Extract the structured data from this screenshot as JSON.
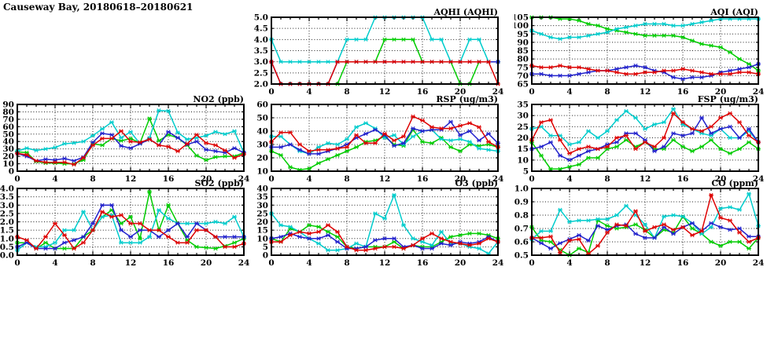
{
  "page_title": "Causeway Bay, 20180618–20180621",
  "colors": {
    "red": "#dd0000",
    "green": "#00cc00",
    "blue": "#2222cc",
    "cyan": "#00cccc"
  },
  "chart_data": [
    {
      "key": "aqhi",
      "type": "line",
      "title": "AQHI (AQHI)",
      "ylim": [
        2.0,
        5.0
      ],
      "ystep": 0.5,
      "ydecimals": 1,
      "xlim": [
        0,
        24
      ],
      "xticks": [
        0,
        4,
        8,
        12,
        16,
        20,
        24
      ],
      "grid": true,
      "legend": "none",
      "x_unit": "hour",
      "series": [
        {
          "name": "red",
          "values": [
            3,
            2,
            2,
            2,
            2,
            2,
            2,
            3,
            3,
            3,
            3,
            3,
            3,
            3,
            3,
            3,
            3,
            3,
            3,
            3,
            3,
            3,
            3,
            3,
            2
          ]
        },
        {
          "name": "green",
          "values": [
            null,
            null,
            null,
            null,
            null,
            null,
            null,
            2,
            3,
            3,
            3,
            3,
            4,
            4,
            4,
            4,
            3,
            3,
            3,
            3,
            2,
            2,
            3,
            3,
            3
          ]
        },
        {
          "name": "blue",
          "values": [
            3,
            2,
            2,
            2,
            2,
            2,
            2,
            3,
            3,
            3,
            3,
            3,
            3,
            3,
            3,
            3,
            3,
            3,
            3,
            3,
            3,
            3,
            3,
            3,
            3
          ]
        },
        {
          "name": "cyan",
          "values": [
            4,
            3,
            3,
            3,
            3,
            3,
            3,
            3,
            4,
            4,
            4,
            5,
            5,
            5,
            5,
            5,
            5,
            4,
            4,
            3,
            3,
            4,
            4,
            3,
            3
          ]
        }
      ]
    },
    {
      "key": "aqi",
      "type": "line",
      "title": "AQI (AQI)",
      "ylim": [
        65,
        105
      ],
      "ystep": 5,
      "ydecimals": 0,
      "xlim": [
        0,
        24
      ],
      "xticks": [
        0,
        4,
        8,
        12,
        16,
        20,
        24
      ],
      "grid": true,
      "legend": "none",
      "x_unit": "hour",
      "series": [
        {
          "name": "red",
          "values": [
            76,
            75,
            75,
            76,
            75,
            75,
            74,
            73,
            73,
            72,
            71,
            71,
            72,
            72,
            73,
            73,
            74,
            73,
            72,
            71,
            71,
            71,
            72,
            72,
            71
          ]
        },
        {
          "name": "green",
          "values": [
            105,
            105,
            105,
            104,
            104,
            103,
            101,
            100,
            98,
            97,
            96,
            95,
            94,
            94,
            94,
            94,
            93,
            91,
            89,
            88,
            87,
            84,
            80,
            77,
            73
          ]
        },
        {
          "name": "blue",
          "values": [
            71,
            71,
            70,
            70,
            70,
            71,
            72,
            73,
            73,
            74,
            75,
            76,
            75,
            73,
            72,
            69,
            68,
            69,
            69,
            70,
            72,
            73,
            74,
            75,
            77
          ]
        },
        {
          "name": "cyan",
          "values": [
            97,
            95,
            93,
            92,
            93,
            93,
            94,
            95,
            96,
            98,
            99,
            100,
            101,
            101,
            101,
            100,
            100,
            101,
            102,
            103,
            104,
            104,
            104,
            104,
            104
          ]
        }
      ]
    },
    {
      "key": "no2",
      "type": "line",
      "title": "NO2 (ppb)",
      "ylim": [
        0,
        90
      ],
      "ystep": 10,
      "ydecimals": 0,
      "xlim": [
        0,
        24
      ],
      "xticks": [
        0,
        4,
        8,
        12,
        16,
        20,
        24
      ],
      "grid": true,
      "legend": "none",
      "x_unit": "hour",
      "series": [
        {
          "name": "red",
          "values": [
            24,
            22,
            14,
            12,
            12,
            12,
            9,
            18,
            35,
            44,
            44,
            54,
            40,
            39,
            43,
            35,
            33,
            27,
            37,
            49,
            38,
            35,
            28,
            18,
            23
          ]
        },
        {
          "name": "green",
          "values": [
            26,
            25,
            13,
            11,
            11,
            10,
            10,
            15,
            37,
            35,
            44,
            41,
            44,
            38,
            71,
            41,
            49,
            45,
            35,
            21,
            15,
            19,
            20,
            20,
            25
          ]
        },
        {
          "name": "blue",
          "values": [
            24,
            20,
            14,
            16,
            15,
            17,
            14,
            19,
            39,
            51,
            49,
            34,
            31,
            37,
            43,
            35,
            53,
            45,
            36,
            40,
            29,
            27,
            25,
            31,
            25
          ]
        },
        {
          "name": "cyan",
          "values": [
            27,
            31,
            28,
            30,
            32,
            37,
            38,
            40,
            48,
            57,
            66,
            45,
            53,
            37,
            45,
            82,
            81,
            52,
            43,
            45,
            48,
            53,
            50,
            54,
            25
          ]
        }
      ]
    },
    {
      "key": "rsp",
      "type": "line",
      "title": "RSP (ug/m3)",
      "ylim": [
        10,
        60
      ],
      "ystep": 10,
      "ydecimals": 0,
      "xlim": [
        0,
        24
      ],
      "xticks": [
        0,
        4,
        8,
        12,
        16,
        20,
        24
      ],
      "grid": true,
      "legend": "none",
      "x_unit": "hour",
      "series": [
        {
          "name": "red",
          "values": [
            32,
            39,
            39,
            30,
            25,
            26,
            26,
            27,
            28,
            37,
            31,
            31,
            38,
            33,
            36,
            51,
            48,
            43,
            42,
            42,
            44,
            46,
            43,
            32,
            28
          ]
        },
        {
          "name": "green",
          "values": [
            25,
            22,
            13,
            11,
            12,
            16,
            19,
            22,
            25,
            28,
            32,
            33,
            36,
            30,
            29,
            41,
            32,
            31,
            35,
            28,
            25,
            30,
            29,
            30,
            28
          ]
        },
        {
          "name": "blue",
          "values": [
            28,
            28,
            30,
            26,
            23,
            23,
            25,
            27,
            30,
            35,
            38,
            41,
            37,
            29,
            31,
            42,
            40,
            41,
            41,
            47,
            37,
            40,
            33,
            38,
            31
          ]
        },
        {
          "name": "cyan",
          "values": [
            36,
            36,
            30,
            25,
            23,
            28,
            31,
            30,
            34,
            43,
            46,
            42,
            35,
            37,
            30,
            36,
            40,
            41,
            34,
            33,
            34,
            32,
            27,
            26,
            25
          ]
        }
      ]
    },
    {
      "key": "fsp",
      "type": "line",
      "title": "FSP (ug/m3)",
      "ylim": [
        5,
        35
      ],
      "ystep": 5,
      "ydecimals": 0,
      "xlim": [
        0,
        24
      ],
      "xticks": [
        0,
        4,
        8,
        12,
        16,
        20,
        24
      ],
      "grid": true,
      "legend": "none",
      "x_unit": "hour",
      "series": [
        {
          "name": "red",
          "values": [
            19,
            27,
            28,
            19,
            13,
            15,
            16,
            15,
            16,
            20,
            21,
            15,
            18,
            16,
            20,
            31,
            27,
            24,
            23,
            25,
            29,
            31,
            27,
            21,
            18
          ]
        },
        {
          "name": "green",
          "values": [
            18,
            12,
            6,
            6,
            7,
            8,
            11,
            11,
            15,
            16,
            19,
            16,
            18,
            15,
            15,
            19,
            16,
            14,
            16,
            19,
            15,
            13,
            15,
            18,
            15
          ]
        },
        {
          "name": "blue",
          "values": [
            15,
            16,
            18,
            12,
            10,
            12,
            14,
            15,
            17,
            18,
            22,
            22,
            19,
            14,
            16,
            22,
            21,
            22,
            29,
            22,
            24,
            25,
            20,
            24,
            18
          ]
        },
        {
          "name": "cyan",
          "values": [
            24,
            25,
            21,
            21,
            17,
            18,
            23,
            20,
            23,
            28,
            32,
            29,
            24,
            26,
            27,
            33,
            26,
            24,
            22,
            21,
            24,
            20,
            20,
            23,
            18
          ]
        }
      ]
    },
    {
      "key": "so2",
      "type": "line",
      "title": "SO2 (ppb)",
      "ylim": [
        0.0,
        4.0
      ],
      "ystep": 0.5,
      "ydecimals": 1,
      "xlim": [
        0,
        24
      ],
      "xticks": [
        0,
        4,
        8,
        12,
        16,
        20,
        24
      ],
      "grid": true,
      "legend": "none",
      "x_unit": "hour",
      "series": [
        {
          "name": "red",
          "values": [
            1.1,
            0.9,
            0.4,
            1.1,
            1.9,
            1.2,
            0.4,
            0.75,
            1.5,
            2.6,
            2.3,
            2.4,
            1.9,
            1.9,
            1.5,
            1.5,
            1.1,
            0.75,
            0.75,
            1.5,
            1.5,
            1.1,
            0.5,
            0.5,
            0.7
          ]
        },
        {
          "name": "green",
          "values": [
            0.75,
            0.75,
            0.4,
            0.75,
            0.4,
            0.4,
            0.4,
            1.1,
            1.5,
            2.3,
            2.7,
            1.9,
            2.3,
            1.0,
            3.8,
            1.5,
            3.0,
            1.9,
            0.9,
            0.5,
            0.45,
            0.4,
            0.55,
            0.75,
            1.0
          ]
        },
        {
          "name": "blue",
          "values": [
            0.5,
            0.75,
            0.4,
            0.4,
            0.4,
            0.75,
            0.9,
            1.1,
            1.9,
            3.0,
            3.0,
            1.5,
            1.1,
            1.5,
            1.5,
            1.1,
            1.5,
            1.9,
            1.1,
            1.9,
            1.5,
            1.1,
            1.1,
            1.1,
            1.1
          ]
        },
        {
          "name": "cyan",
          "values": [
            0.3,
            0.75,
            0.5,
            0.5,
            0.75,
            1.5,
            1.5,
            2.6,
            1.5,
            2.3,
            2.4,
            0.75,
            0.75,
            0.75,
            1.1,
            2.7,
            2.2,
            1.9,
            1.9,
            1.9,
            1.9,
            2.0,
            1.9,
            2.3,
            1.1
          ]
        }
      ]
    },
    {
      "key": "o3",
      "type": "line",
      "title": "O3 (ppb)",
      "ylim": [
        0,
        40
      ],
      "ystep": 5,
      "ydecimals": 0,
      "xlim": [
        0,
        24
      ],
      "xticks": [
        0,
        4,
        8,
        12,
        16,
        20,
        24
      ],
      "grid": true,
      "legend": "none",
      "x_unit": "hour",
      "series": [
        {
          "name": "red",
          "values": [
            8,
            8,
            12,
            14,
            13,
            14,
            18,
            14,
            5,
            3,
            3,
            4,
            5,
            5,
            4,
            6,
            10,
            13,
            10,
            8,
            7,
            6,
            7,
            10,
            8
          ]
        },
        {
          "name": "green",
          "values": [
            10,
            8,
            16,
            14,
            18,
            17,
            14,
            11,
            5,
            4,
            5,
            5,
            5,
            8,
            4,
            6,
            5,
            5,
            8,
            11,
            12,
            13,
            13,
            12,
            10
          ]
        },
        {
          "name": "blue",
          "values": [
            10,
            11,
            13,
            11,
            10,
            10,
            12,
            8,
            4,
            4,
            5,
            9,
            10,
            10,
            5,
            6,
            4,
            4,
            7,
            6,
            8,
            7,
            8,
            11,
            8
          ]
        },
        {
          "name": "cyan",
          "values": [
            25,
            18,
            17,
            14,
            10,
            7,
            3,
            3,
            4,
            7,
            5,
            25,
            22,
            36,
            18,
            10,
            8,
            6,
            14,
            7,
            7,
            5,
            4,
            1,
            8
          ]
        }
      ]
    },
    {
      "key": "co",
      "type": "line",
      "title": "CO (ppm)",
      "ylim": [
        0.5,
        1.0
      ],
      "ystep": 0.1,
      "ydecimals": 1,
      "xlim": [
        0,
        24
      ],
      "xticks": [
        0,
        4,
        8,
        12,
        16,
        20,
        24
      ],
      "grid": true,
      "legend": "none",
      "x_unit": "hour",
      "series": [
        {
          "name": "red",
          "values": [
            0.63,
            0.63,
            0.64,
            0.52,
            0.61,
            0.62,
            0.51,
            0.57,
            0.67,
            0.73,
            0.72,
            0.83,
            0.68,
            0.71,
            0.73,
            0.69,
            0.71,
            0.65,
            0.68,
            0.95,
            0.78,
            0.76,
            0.67,
            0.6,
            0.63
          ]
        },
        {
          "name": "green",
          "values": [
            0.71,
            0.61,
            0.6,
            0.54,
            0.5,
            0.55,
            0.52,
            0.76,
            0.72,
            0.7,
            0.71,
            0.73,
            0.69,
            0.63,
            0.69,
            0.67,
            0.79,
            0.7,
            0.66,
            0.6,
            0.57,
            0.6,
            0.6,
            0.55,
            0.63
          ]
        },
        {
          "name": "blue",
          "values": [
            0.63,
            0.59,
            0.55,
            0.59,
            0.62,
            0.65,
            0.61,
            0.72,
            0.69,
            0.72,
            0.73,
            0.66,
            0.63,
            0.63,
            0.71,
            0.66,
            0.71,
            0.74,
            0.68,
            0.74,
            0.71,
            0.69,
            0.7,
            0.64,
            0.64
          ]
        },
        {
          "name": "cyan",
          "values": [
            0.62,
            0.68,
            0.68,
            0.84,
            0.75,
            0.76,
            0.76,
            0.77,
            0.77,
            0.8,
            0.87,
            0.8,
            0.73,
            0.63,
            0.79,
            0.8,
            0.79,
            0.74,
            0.66,
            0.71,
            0.85,
            0.86,
            0.84,
            0.96,
            0.72
          ]
        }
      ]
    }
  ]
}
